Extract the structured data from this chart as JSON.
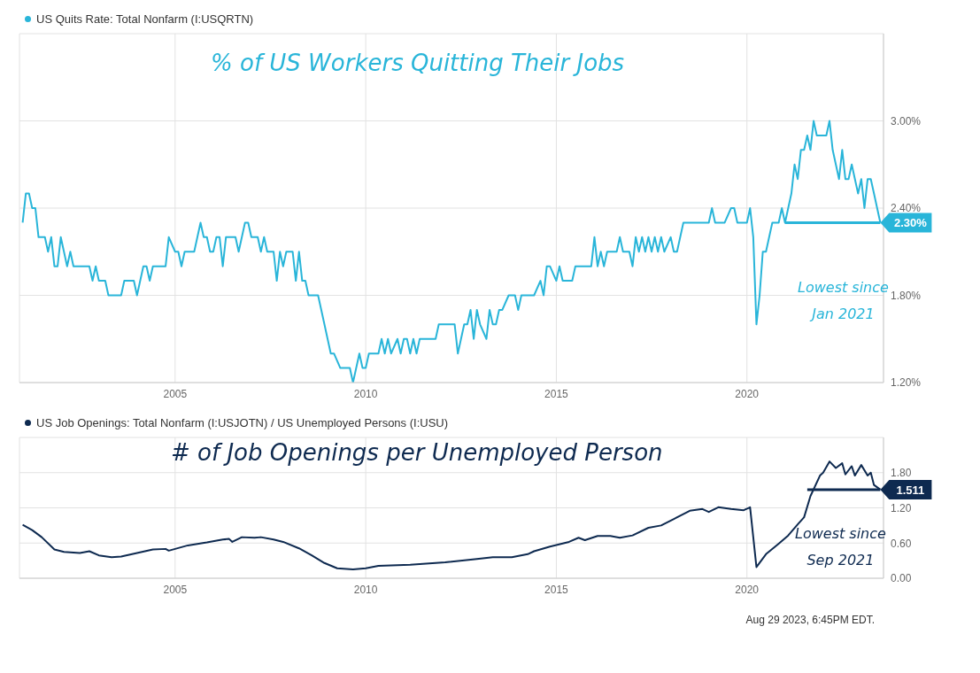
{
  "chart_data": [
    {
      "type": "line",
      "title": "% of US Workers Quitting Their Jobs",
      "legend": "top left",
      "grid": true,
      "xlim": [
        "2000-12",
        "2023-08"
      ],
      "xticks": [
        "2005",
        "2010",
        "2015",
        "2020"
      ],
      "ylim": [
        1.2,
        3.6
      ],
      "yticks": [
        {
          "value": 1.2,
          "label": "1.20%"
        },
        {
          "value": 1.8,
          "label": "1.80%"
        },
        {
          "value": 2.4,
          "label": "2.40%"
        },
        {
          "value": 3.0,
          "label": "3.00%"
        }
      ],
      "annotations": [
        "Lowest since Jan 2021"
      ],
      "series": [
        {
          "name": "US Quits Rate: Total Nonfarm (I:USQRTN)",
          "color": "#29b5d9",
          "x": [
            "2001-01",
            "2001-02",
            "2001-03",
            "2001-04",
            "2001-05",
            "2001-06",
            "2001-08",
            "2001-09",
            "2001-10",
            "2001-11",
            "2001-12",
            "2002-01",
            "2002-03",
            "2002-04",
            "2002-05",
            "2002-10",
            "2002-11",
            "2002-12",
            "2003-01",
            "2003-03",
            "2003-04",
            "2003-08",
            "2003-09",
            "2003-12",
            "2004-01",
            "2004-03",
            "2004-04",
            "2004-05",
            "2004-06",
            "2004-10",
            "2004-11",
            "2005-01",
            "2005-02",
            "2005-03",
            "2005-04",
            "2005-07",
            "2005-09",
            "2005-10",
            "2005-11",
            "2005-12",
            "2006-01",
            "2006-02",
            "2006-03",
            "2006-04",
            "2006-05",
            "2006-08",
            "2006-09",
            "2006-11",
            "2006-12",
            "2007-01",
            "2007-03",
            "2007-04",
            "2007-05",
            "2007-06",
            "2007-08",
            "2007-09",
            "2007-10",
            "2007-11",
            "2007-12",
            "2008-02",
            "2008-03",
            "2008-04",
            "2008-05",
            "2008-06",
            "2008-07",
            "2008-10",
            "2008-12",
            "2009-01",
            "2009-02",
            "2009-03",
            "2009-05",
            "2009-08",
            "2009-09",
            "2009-11",
            "2009-12",
            "2010-01",
            "2010-02",
            "2010-05",
            "2010-06",
            "2010-07",
            "2010-08",
            "2010-09",
            "2010-11",
            "2010-12",
            "2011-01",
            "2011-02",
            "2011-03",
            "2011-04",
            "2011-05",
            "2011-06",
            "2011-11",
            "2011-12",
            "2012-05",
            "2012-06",
            "2012-08",
            "2012-09",
            "2012-10",
            "2012-11",
            "2012-12",
            "2013-01",
            "2013-03",
            "2013-04",
            "2013-05",
            "2013-06",
            "2013-07",
            "2013-08",
            "2013-10",
            "2013-12",
            "2014-01",
            "2014-02",
            "2014-06",
            "2014-08",
            "2014-09",
            "2014-10",
            "2014-11",
            "2015-01",
            "2015-02",
            "2015-03",
            "2015-06",
            "2015-07",
            "2015-12",
            "2016-01",
            "2016-02",
            "2016-03",
            "2016-04",
            "2016-05",
            "2016-08",
            "2016-09",
            "2016-10",
            "2016-12",
            "2017-01",
            "2017-02",
            "2017-03",
            "2017-04",
            "2017-05",
            "2017-06",
            "2017-07",
            "2017-08",
            "2017-09",
            "2017-10",
            "2017-11",
            "2018-01",
            "2018-02",
            "2018-03",
            "2018-05",
            "2019-01",
            "2019-02",
            "2019-03",
            "2019-06",
            "2019-08",
            "2019-09",
            "2019-10",
            "2020-01",
            "2020-02",
            "2020-03",
            "2020-04",
            "2020-05",
            "2020-06",
            "2020-07",
            "2020-08",
            "2020-09",
            "2020-11",
            "2020-12",
            "2021-01",
            "2021-02",
            "2021-03",
            "2021-04",
            "2021-05",
            "2021-06",
            "2021-07",
            "2021-08",
            "2021-09",
            "2021-10",
            "2021-11",
            "2022-02",
            "2022-03",
            "2022-04",
            "2022-05",
            "2022-06",
            "2022-07",
            "2022-08",
            "2022-09",
            "2022-10",
            "2022-11",
            "2022-12",
            "2023-01",
            "2023-02",
            "2023-03",
            "2023-04",
            "2023-05",
            "2023-06",
            "2023-07"
          ],
          "values": [
            2.3,
            2.5,
            2.5,
            2.4,
            2.4,
            2.2,
            2.2,
            2.1,
            2.2,
            2.0,
            2.0,
            2.2,
            2.0,
            2.1,
            2.0,
            2.0,
            1.9,
            2.0,
            1.9,
            1.9,
            1.8,
            1.8,
            1.9,
            1.9,
            1.8,
            2.0,
            2.0,
            1.9,
            2.0,
            2.0,
            2.2,
            2.1,
            2.1,
            2.0,
            2.1,
            2.1,
            2.3,
            2.2,
            2.2,
            2.1,
            2.1,
            2.2,
            2.2,
            2.0,
            2.2,
            2.2,
            2.1,
            2.3,
            2.3,
            2.2,
            2.2,
            2.1,
            2.2,
            2.1,
            2.1,
            1.9,
            2.1,
            2.0,
            2.1,
            2.1,
            1.9,
            2.1,
            1.9,
            1.9,
            1.8,
            1.8,
            1.6,
            1.5,
            1.4,
            1.4,
            1.3,
            1.3,
            1.2,
            1.4,
            1.3,
            1.3,
            1.4,
            1.4,
            1.5,
            1.4,
            1.5,
            1.4,
            1.5,
            1.4,
            1.5,
            1.5,
            1.4,
            1.5,
            1.4,
            1.5,
            1.5,
            1.6,
            1.6,
            1.4,
            1.6,
            1.6,
            1.7,
            1.5,
            1.7,
            1.6,
            1.5,
            1.7,
            1.6,
            1.6,
            1.7,
            1.7,
            1.8,
            1.8,
            1.7,
            1.8,
            1.8,
            1.9,
            1.8,
            2.0,
            2.0,
            1.9,
            2.0,
            1.9,
            1.9,
            2.0,
            2.0,
            2.2,
            2.0,
            2.1,
            2.0,
            2.1,
            2.1,
            2.2,
            2.1,
            2.1,
            2.0,
            2.2,
            2.1,
            2.2,
            2.1,
            2.2,
            2.1,
            2.2,
            2.1,
            2.2,
            2.1,
            2.2,
            2.1,
            2.1,
            2.3,
            2.3,
            2.4,
            2.3,
            2.3,
            2.4,
            2.4,
            2.3,
            2.3,
            2.4,
            2.2,
            1.6,
            1.8,
            2.1,
            2.1,
            2.2,
            2.3,
            2.3,
            2.4,
            2.3,
            2.4,
            2.5,
            2.7,
            2.6,
            2.8,
            2.8,
            2.9,
            2.8,
            3.0,
            2.9,
            2.9,
            3.0,
            2.8,
            2.7,
            2.6,
            2.8,
            2.6,
            2.6,
            2.7,
            2.6,
            2.5,
            2.6,
            2.4,
            2.6,
            2.6,
            2.5,
            2.4,
            2.3
          ]
        },
        {
          "type": "line",
          "color": "#29b5d9",
          "x": [
            "2021-01",
            "2023-07"
          ],
          "values": [
            2.3,
            2.3
          ],
          "value_labels": [
            null,
            "2.30%"
          ]
        }
      ]
    },
    {
      "type": "line",
      "title": "# of Job Openings per Unemployed Person",
      "legend": "top left",
      "grid": true,
      "xlim": [
        "2000-12",
        "2023-08"
      ],
      "xticks": [
        "2005",
        "2010",
        "2015",
        "2020"
      ],
      "ylim": [
        0,
        2.4
      ],
      "yticks": [
        {
          "value": 0,
          "label": "0.00"
        },
        {
          "value": 0.6,
          "label": "0.60"
        },
        {
          "value": 1.2,
          "label": "1.20"
        },
        {
          "value": 1.8,
          "label": "1.80"
        }
      ],
      "annotations": [
        "Lowest since Sep 2021",
        "Aug 29 2023, 6:45PM EDT."
      ],
      "series": [
        {
          "name": "US Job Openings: Total Nonfarm (I:USJOTN) / US Unemployed Persons (I:USU)",
          "color": "#0e2a50",
          "x": [
            "2001-01",
            "2001-04",
            "2001-07",
            "2001-11",
            "2002-02",
            "2002-07",
            "2002-10",
            "2003-01",
            "2003-05",
            "2003-08",
            "2004-01",
            "2004-06",
            "2004-10",
            "2004-11",
            "2005-05",
            "2005-11",
            "2006-04",
            "2006-06",
            "2006-07",
            "2006-10",
            "2007-02",
            "2007-04",
            "2007-08",
            "2007-11",
            "2008-04",
            "2008-08",
            "2008-12",
            "2009-04",
            "2009-09",
            "2010-01",
            "2010-05",
            "2011-03",
            "2012-02",
            "2012-12",
            "2013-05",
            "2013-11",
            "2014-04",
            "2014-06",
            "2014-11",
            "2015-05",
            "2015-08",
            "2015-10",
            "2016-02",
            "2016-06",
            "2016-09",
            "2017-01",
            "2017-06",
            "2017-10",
            "2018-02",
            "2018-07",
            "2018-11",
            "2019-01",
            "2019-04",
            "2019-08",
            "2019-12",
            "2020-02",
            "2020-04",
            "2020-07",
            "2020-11",
            "2021-02",
            "2021-05",
            "2021-07",
            "2021-09",
            "2021-12",
            "2022-01",
            "2022-03",
            "2022-05",
            "2022-07",
            "2022-08",
            "2022-10",
            "2022-11",
            "2023-01",
            "2023-03",
            "2023-04",
            "2023-05",
            "2023-07"
          ],
          "values": [
            0.91,
            0.82,
            0.7,
            0.49,
            0.45,
            0.43,
            0.46,
            0.39,
            0.36,
            0.37,
            0.43,
            0.49,
            0.5,
            0.47,
            0.56,
            0.61,
            0.66,
            0.67,
            0.62,
            0.7,
            0.69,
            0.7,
            0.66,
            0.62,
            0.51,
            0.39,
            0.26,
            0.17,
            0.15,
            0.17,
            0.21,
            0.23,
            0.27,
            0.33,
            0.36,
            0.36,
            0.41,
            0.46,
            0.54,
            0.62,
            0.69,
            0.65,
            0.72,
            0.72,
            0.69,
            0.73,
            0.86,
            0.9,
            1.01,
            1.15,
            1.18,
            1.13,
            1.21,
            1.18,
            1.16,
            1.21,
            0.19,
            0.41,
            0.59,
            0.73,
            0.92,
            1.04,
            1.4,
            1.75,
            1.8,
            1.99,
            1.88,
            1.96,
            1.77,
            1.91,
            1.75,
            1.93,
            1.75,
            1.8,
            1.59,
            1.511
          ]
        },
        {
          "type": "line",
          "color": "#0e2a50",
          "x": [
            "2021-08",
            "2023-07"
          ],
          "values": [
            1.511,
            1.511
          ],
          "value_labels": [
            null,
            "1.511"
          ]
        }
      ]
    }
  ]
}
